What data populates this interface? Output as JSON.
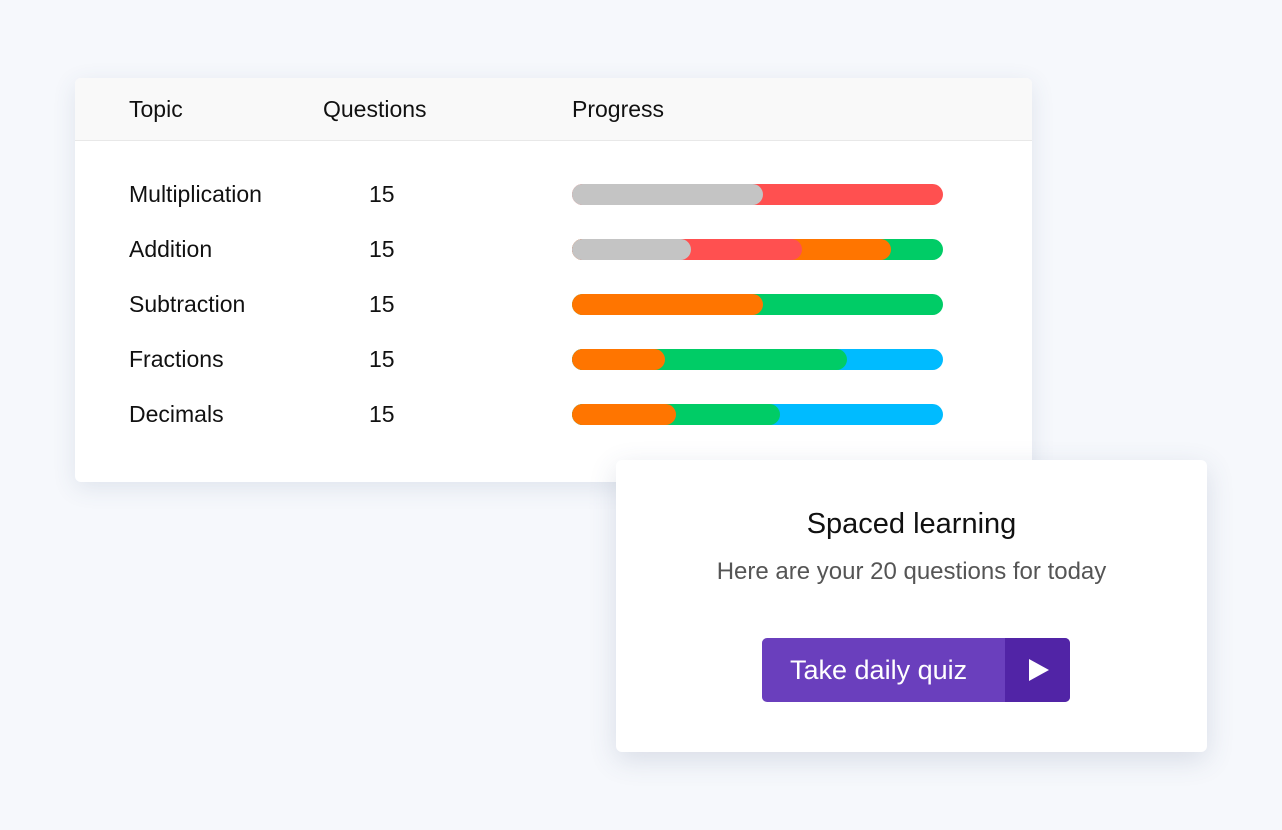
{
  "table": {
    "headers": {
      "topic": "Topic",
      "questions": "Questions",
      "progress": "Progress"
    },
    "rows": [
      {
        "topic": "Multiplication",
        "questions": "15",
        "progress": [
          {
            "color": "#c4c4c4",
            "fraction": 0.515
          },
          {
            "color": "#ff5050",
            "fraction": 0.485
          }
        ]
      },
      {
        "topic": "Addition",
        "questions": "15",
        "progress": [
          {
            "color": "#c4c4c4",
            "fraction": 0.32
          },
          {
            "color": "#ff5050",
            "fraction": 0.3
          },
          {
            "color": "#ff7500",
            "fraction": 0.24
          },
          {
            "color": "#00cc66",
            "fraction": 0.14
          }
        ]
      },
      {
        "topic": "Subtraction",
        "questions": "15",
        "progress": [
          {
            "color": "#ff7500",
            "fraction": 0.515
          },
          {
            "color": "#00cc66",
            "fraction": 0.485
          }
        ]
      },
      {
        "topic": "Fractions",
        "questions": "15",
        "progress": [
          {
            "color": "#ff7500",
            "fraction": 0.25
          },
          {
            "color": "#00cc66",
            "fraction": 0.49
          },
          {
            "color": "#00bbff",
            "fraction": 0.26
          }
        ]
      },
      {
        "topic": "Decimals",
        "questions": "15",
        "progress": [
          {
            "color": "#ff7500",
            "fraction": 0.28
          },
          {
            "color": "#00cc66",
            "fraction": 0.28
          },
          {
            "color": "#00bbff",
            "fraction": 0.44
          }
        ]
      }
    ]
  },
  "spaced": {
    "title": "Spaced learning",
    "subtitle": "Here are your 20 questions for today",
    "button_label": "Take daily quiz",
    "button_icon": "play-icon"
  }
}
